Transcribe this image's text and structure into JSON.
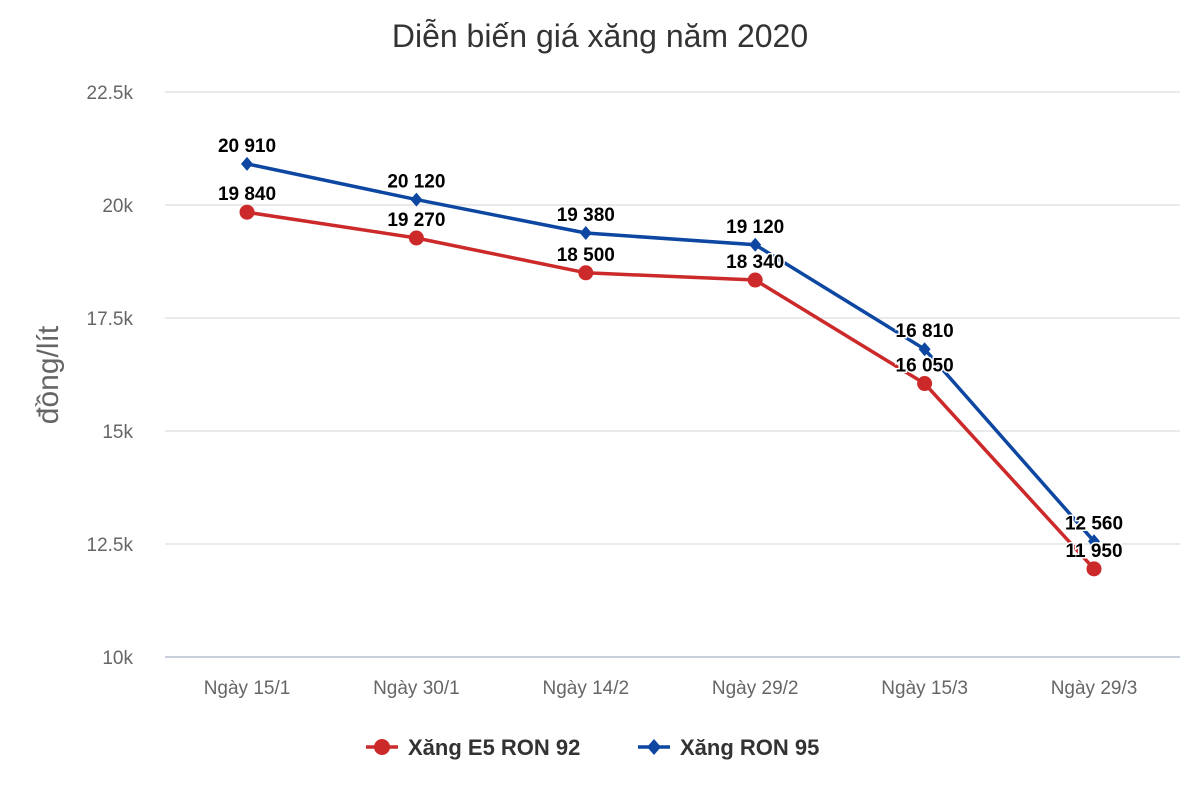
{
  "chart_data": {
    "type": "line",
    "title": "Diễn biến giá xăng năm 2020",
    "xlabel": "",
    "ylabel": "đồng/lít",
    "categories": [
      "Ngày 15/1",
      "Ngày 30/1",
      "Ngày 14/2",
      "Ngày 29/2",
      "Ngày 15/3",
      "Ngày 29/3"
    ],
    "ylim": [
      10000,
      22500
    ],
    "yticks": [
      10000,
      12500,
      15000,
      17500,
      20000,
      22500
    ],
    "ytick_labels": [
      "10k",
      "12.5k",
      "15k",
      "17.5k",
      "20k",
      "22.5k"
    ],
    "grid": true,
    "legend_position": "bottom",
    "series": [
      {
        "name": "Xăng E5 RON 92",
        "color": "#cc2a2a",
        "marker": "circle",
        "values": [
          19840,
          19270,
          18500,
          18340,
          16050,
          11950
        ],
        "labels": [
          "19 840",
          "19 270",
          "18 500",
          "18 340",
          "16 050",
          "11 950"
        ]
      },
      {
        "name": "Xăng RON 95",
        "color": "#0d47a1",
        "marker": "diamond",
        "values": [
          20910,
          20120,
          19380,
          19120,
          16810,
          12560
        ],
        "labels": [
          "20 910",
          "20 120",
          "19 380",
          "19 120",
          "16 810",
          "12 560"
        ]
      }
    ]
  }
}
